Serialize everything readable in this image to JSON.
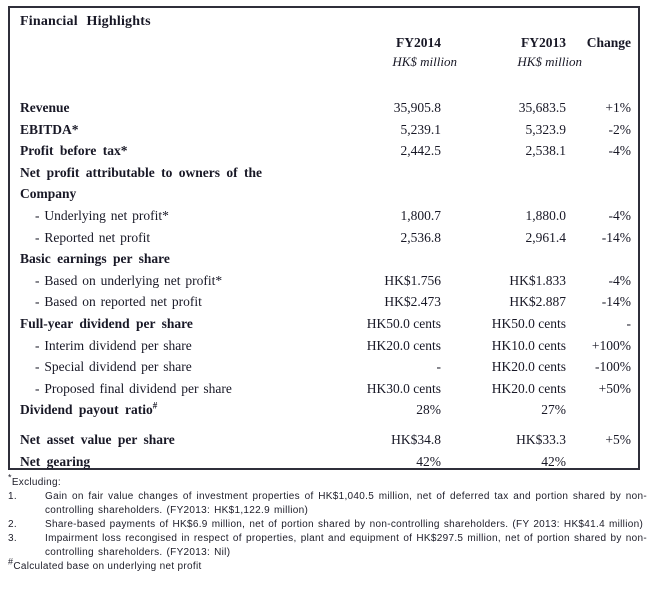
{
  "table": {
    "title": "Financial Highlights",
    "columns": {
      "fy2014": "FY2014",
      "fy2013": "FY2013",
      "change": "Change"
    },
    "units": {
      "fy2014": "HK$ million",
      "fy2013": "HK$ million"
    },
    "rows": [
      {
        "label": "Revenue",
        "bold": true,
        "fy2014": "35,905.8",
        "fy2013": "35,683.5",
        "change": "+1%"
      },
      {
        "label": "EBITDA*",
        "bold": true,
        "fy2014": "5,239.1",
        "fy2013": "5,323.9",
        "change": "-2%"
      },
      {
        "label": "Profit before tax*",
        "bold": true,
        "fy2014": "2,442.5",
        "fy2013": "2,538.1",
        "change": "-4%"
      },
      {
        "label": "Net profit attributable to owners of the",
        "bold": true,
        "fy2014": "",
        "fy2013": "",
        "change": ""
      },
      {
        "label": "Company",
        "bold": true,
        "fy2014": "",
        "fy2013": "",
        "change": ""
      },
      {
        "label": "- Underlying net profit*",
        "indent": true,
        "fy2014": "1,800.7",
        "fy2013": "1,880.0",
        "change": "-4%"
      },
      {
        "label": "- Reported net profit",
        "indent": true,
        "fy2014": "2,536.8",
        "fy2013": "2,961.4",
        "change": "-14%"
      },
      {
        "label": "Basic earnings per share",
        "bold": true,
        "fy2014": "",
        "fy2013": "",
        "change": ""
      },
      {
        "label": "- Based on underlying net profit*",
        "indent": true,
        "fy2014": "HK$1.756",
        "fy2013": "HK$1.833",
        "change": "-4%"
      },
      {
        "label": "- Based on reported net profit",
        "indent": true,
        "fy2014": "HK$2.473",
        "fy2013": "HK$2.887",
        "change": "-14%"
      },
      {
        "label": "Full-year dividend per share",
        "bold": true,
        "fy2014": "HK50.0 cents",
        "fy2013": "HK50.0 cents",
        "change": "-"
      },
      {
        "label": "- Interim dividend per share",
        "indent": true,
        "fy2014": "HK20.0 cents",
        "fy2013": "HK10.0 cents",
        "change": "+100%"
      },
      {
        "label": "- Special dividend per share",
        "indent": true,
        "fy2014": "-",
        "fy2013": "HK20.0 cents",
        "change": "-100%"
      },
      {
        "label": "- Proposed final dividend per share",
        "indent": true,
        "fy2014": "HK30.0 cents",
        "fy2013": "HK20.0 cents",
        "change": "+50%"
      },
      {
        "label": "Dividend payout ratio",
        "label_sup": "#",
        "bold": true,
        "fy2014": "28%",
        "fy2013": "27%",
        "change": ""
      },
      {
        "spacer": true
      },
      {
        "label": "Net asset value per share",
        "bold": true,
        "fy2014": "HK$34.8",
        "fy2013": "HK$33.3",
        "change": "+5%"
      },
      {
        "label": "Net gearing",
        "bold": true,
        "fy2014": "42%",
        "fy2013": "42%",
        "change": ""
      }
    ]
  },
  "footnotes": {
    "heading_marker": "*",
    "heading": "Excluding:",
    "items": [
      {
        "num": "1.",
        "text": "Gain on fair value changes of investment properties of HK$1,040.5 million, net of deferred tax and portion shared by non-controlling shareholders. (FY2013: HK$1,122.9 million)"
      },
      {
        "num": "2.",
        "text": "Share-based payments of HK$6.9 million, net of portion shared by non-controlling shareholders. (FY 2013: HK$41.4 million)"
      },
      {
        "num": "3.",
        "text": "Impairment loss recongised in respect of properties, plant and equipment of HK$297.5 million, net of portion shared by non-controlling shareholders. (FY2013: Nil)"
      }
    ],
    "hash_marker": "#",
    "hash_note": "Calculated base on underlying net profit"
  }
}
